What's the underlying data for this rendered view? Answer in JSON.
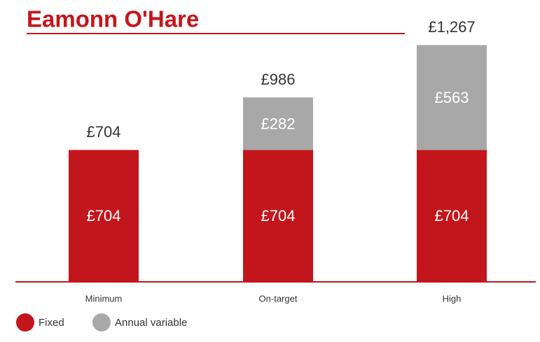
{
  "chart_data": {
    "type": "stacked-bar",
    "title": "Eamonn O'Hare",
    "categories": [
      "Minimum",
      "On-target",
      "High"
    ],
    "series": [
      {
        "name": "Fixed",
        "color": "#c3161c",
        "values": [
          704,
          704,
          704
        ],
        "value_labels": [
          "£704",
          "£704",
          "£704"
        ]
      },
      {
        "name": "Annual variable",
        "color": "#a8a8a8",
        "values": [
          null,
          282,
          563
        ],
        "value_labels": [
          null,
          "£282",
          "£563"
        ]
      }
    ],
    "total_labels": [
      "£704",
      "£986",
      "£1,267"
    ],
    "ylim": [
      0,
      1400
    ]
  }
}
